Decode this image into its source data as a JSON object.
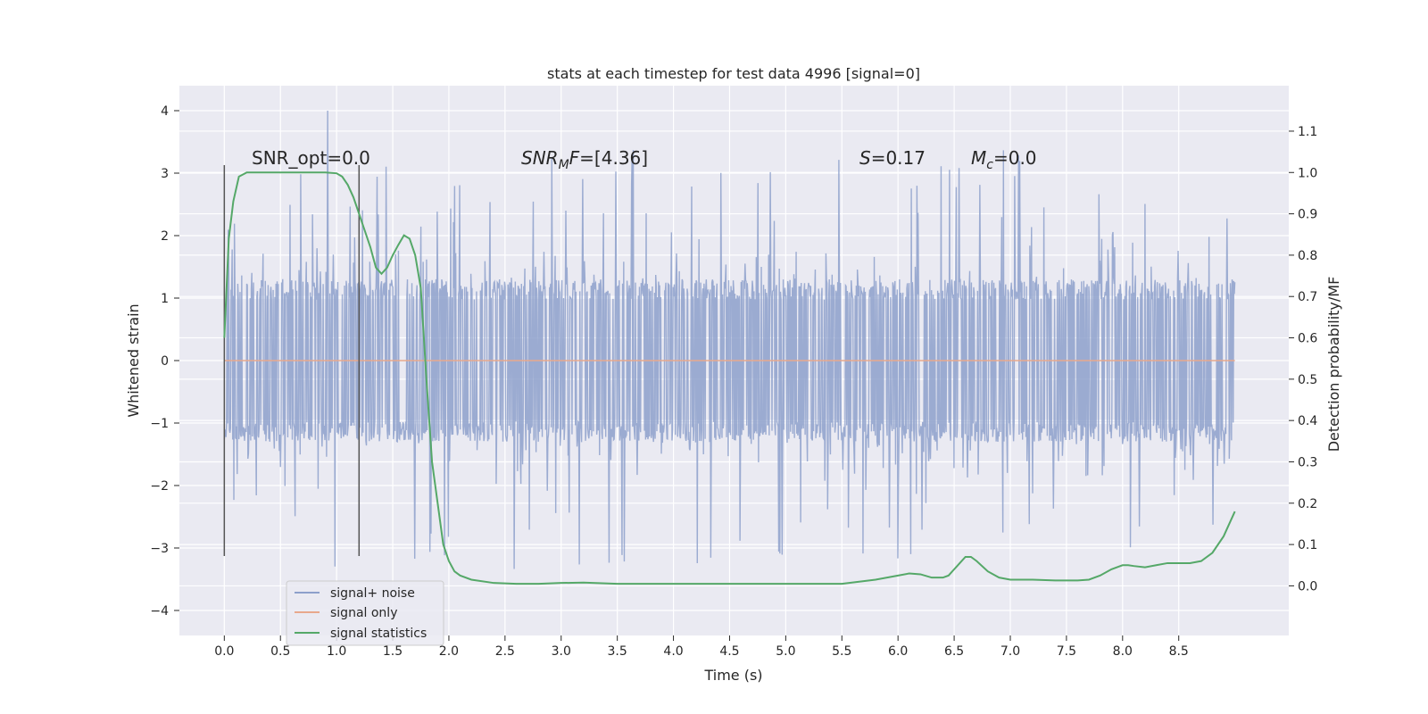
{
  "chart_data": {
    "type": "line",
    "title": "stats at each timestep for test data 4996 [signal=0]",
    "xlabel": "Time (s)",
    "ylabel": "Whitened strain",
    "y2label": "Detection probability/MF",
    "xlim": [
      -0.4,
      9.48
    ],
    "ylim": [
      -4.4,
      4.4
    ],
    "y2lim": [
      -0.12,
      1.21
    ],
    "x_ticks": [
      "0.0",
      "0.5",
      "1.0",
      "1.5",
      "2.0",
      "2.5",
      "3.0",
      "3.5",
      "4.0",
      "4.5",
      "5.0",
      "5.5",
      "6.0",
      "6.5",
      "7.0",
      "7.5",
      "8.0",
      "8.5"
    ],
    "y_ticks": [
      "4",
      "3",
      "2",
      "1",
      "0",
      "−1",
      "−2",
      "−3",
      "−4"
    ],
    "y2_ticks": [
      "1.1",
      "1.0",
      "0.9",
      "0.8",
      "0.7",
      "0.6",
      "0.5",
      "0.4",
      "0.3",
      "0.2",
      "0.1",
      "0.0"
    ],
    "grid": true,
    "legend_position": "bottom-left",
    "annotations": {
      "snr_opt": "SNR_opt=0.0",
      "snr_mf_main": "SNR",
      "snr_mf_sub": "M",
      "snr_mf_tail": "F",
      "snr_mf_value": "=[4.36]",
      "s_var": "S",
      "s_value": "=0.17",
      "mc_var": "M",
      "mc_sub": "c",
      "mc_value": "=0.0"
    },
    "vertical_markers_x": [
      0.0,
      1.2
    ],
    "noise_series": {
      "t_start": 0.0,
      "t_end": 9.0,
      "samples": 1800,
      "envelope": 1.3,
      "spike_max": 3.4,
      "peak": 4.0,
      "peak_t": 0.92
    },
    "series": [
      {
        "name": "signal+ noise",
        "color": "#8da0cb"
      },
      {
        "name": "signal only",
        "color": "#e8a88c",
        "x": [
          0.0,
          9.0
        ],
        "y": [
          0.0,
          0.0
        ]
      },
      {
        "name": "signal statistics",
        "color": "#55a868",
        "axis": "right",
        "x": [
          0.0,
          0.04,
          0.08,
          0.13,
          0.2,
          0.3,
          0.5,
          0.7,
          0.9,
          1.0,
          1.05,
          1.1,
          1.15,
          1.2,
          1.25,
          1.3,
          1.35,
          1.4,
          1.45,
          1.5,
          1.55,
          1.6,
          1.65,
          1.7,
          1.75,
          1.8,
          1.85,
          1.9,
          1.95,
          2.0,
          2.05,
          2.1,
          2.2,
          2.4,
          2.6,
          2.8,
          3.0,
          3.2,
          3.5,
          4.0,
          4.5,
          5.0,
          5.5,
          5.8,
          6.0,
          6.1,
          6.2,
          6.3,
          6.4,
          6.45,
          6.5,
          6.55,
          6.6,
          6.65,
          6.7,
          6.8,
          6.9,
          7.0,
          7.2,
          7.4,
          7.6,
          7.7,
          7.8,
          7.9,
          8.0,
          8.05,
          8.1,
          8.2,
          8.3,
          8.4,
          8.5,
          8.6,
          8.7,
          8.8,
          8.9,
          8.95,
          9.0
        ],
        "y": [
          0.6,
          0.84,
          0.93,
          0.99,
          1.0,
          1.0,
          1.0,
          1.0,
          1.0,
          0.998,
          0.99,
          0.97,
          0.94,
          0.9,
          0.86,
          0.82,
          0.77,
          0.755,
          0.77,
          0.8,
          0.825,
          0.848,
          0.84,
          0.8,
          0.72,
          0.5,
          0.3,
          0.2,
          0.1,
          0.06,
          0.035,
          0.025,
          0.015,
          0.007,
          0.005,
          0.005,
          0.007,
          0.008,
          0.005,
          0.005,
          0.005,
          0.005,
          0.005,
          0.015,
          0.025,
          0.03,
          0.028,
          0.02,
          0.02,
          0.025,
          0.04,
          0.055,
          0.07,
          0.07,
          0.06,
          0.035,
          0.02,
          0.015,
          0.015,
          0.013,
          0.013,
          0.015,
          0.025,
          0.04,
          0.05,
          0.05,
          0.048,
          0.045,
          0.05,
          0.055,
          0.055,
          0.055,
          0.06,
          0.08,
          0.12,
          0.15,
          0.18
        ]
      }
    ]
  }
}
